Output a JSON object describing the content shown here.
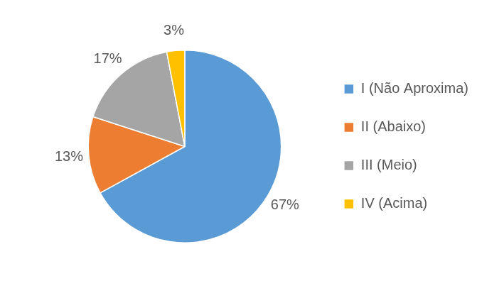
{
  "chart_data": {
    "type": "pie",
    "categories": [
      "I (Não Aproxima)",
      "II (Abaixo)",
      "III (Meio)",
      "IV (Acima)"
    ],
    "values": [
      67,
      13,
      17,
      3
    ],
    "value_labels": [
      "67%",
      "13%",
      "17%",
      "3%"
    ],
    "colors": [
      "#5b9bd5",
      "#ed7d31",
      "#a5a5a5",
      "#ffc000"
    ],
    "data_labels": true,
    "legend": "right"
  }
}
